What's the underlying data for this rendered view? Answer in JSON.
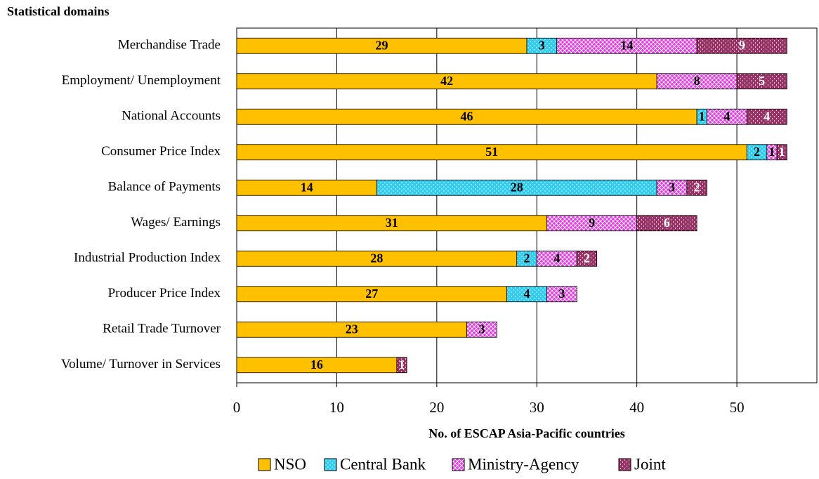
{
  "chart_data": {
    "type": "stacked-barh",
    "ylabel": "Statistical domains",
    "xlabel": "No. of ESCAP Asia-Pacific countries",
    "categories": [
      "Merchandise Trade",
      "Employment/ Unemployment",
      "National Accounts",
      "Consumer Price Index",
      "Balance of Payments",
      "Wages/ Earnings",
      "Industrial Production Index",
      "Producer Price Index",
      "Retail Trade Turnover",
      "Volume/ Turnover in Services"
    ],
    "series": [
      {
        "name": "NSO",
        "color": "#ffc000",
        "values": [
          29,
          42,
          46,
          51,
          14,
          31,
          28,
          27,
          23,
          16
        ]
      },
      {
        "name": "Central Bank",
        "color": "#33ccee",
        "values": [
          3,
          null,
          1,
          2,
          28,
          null,
          2,
          4,
          null,
          null
        ]
      },
      {
        "name": "Ministry-Agency",
        "color": "#e33ce3",
        "values": [
          14,
          8,
          4,
          1,
          3,
          9,
          4,
          3,
          3,
          null
        ]
      },
      {
        "name": "Joint",
        "color": "#993366",
        "values": [
          9,
          5,
          4,
          1,
          2,
          6,
          2,
          null,
          null,
          1
        ]
      }
    ],
    "xlim": [
      0,
      58
    ],
    "xticks": [
      0,
      10,
      20,
      30,
      40,
      50
    ],
    "grid": true,
    "legend": "bottom"
  }
}
